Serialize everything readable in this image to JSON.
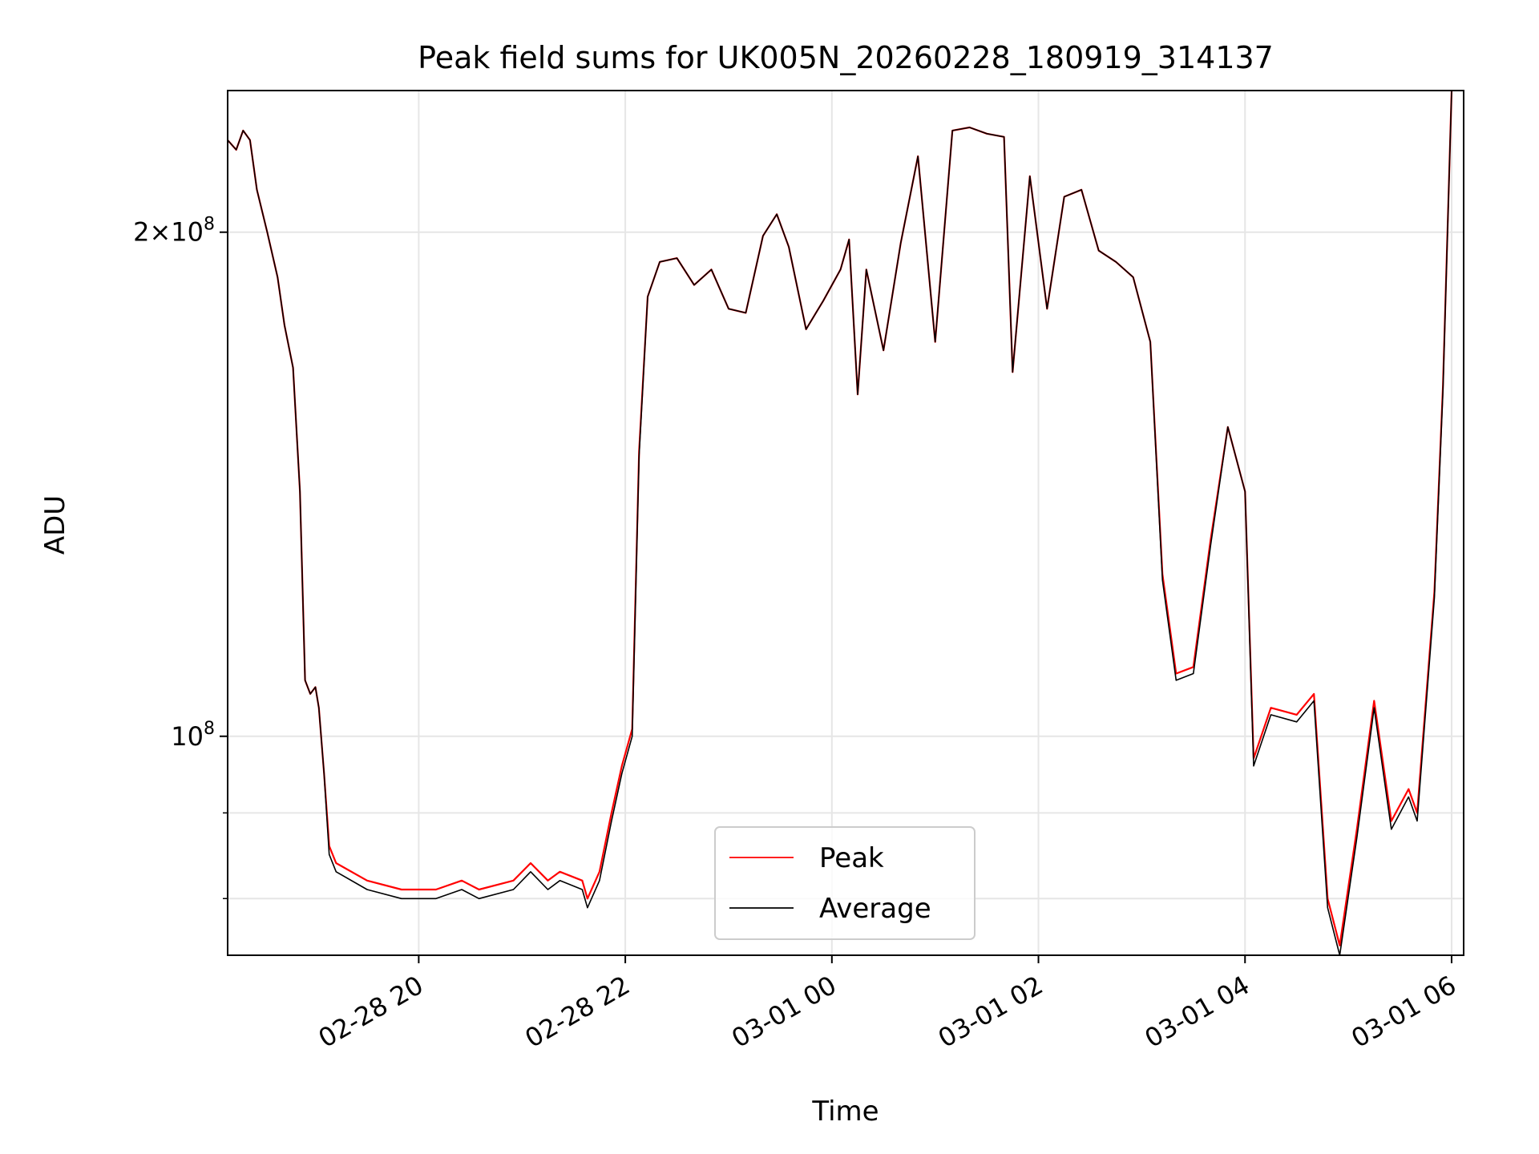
{
  "chart_data": {
    "type": "line",
    "title": "Peak field sums for UK005N_20260228_180919_314137",
    "xlabel": "Time",
    "ylabel": "ADU",
    "y_scale": "log",
    "ylim": [
      74000000.0,
      243000000.0
    ],
    "xlim": [
      "2026-02-28 18:09",
      "2026-03-01 06:07"
    ],
    "x_ticks": [
      "2026-02-28 20:00",
      "2026-02-28 22:00",
      "2026-03-01 00:00",
      "2026-03-01 02:00",
      "2026-03-01 04:00",
      "2026-03-01 06:00"
    ],
    "x_tick_labels": [
      "02-28 20",
      "02-28 22",
      "03-01 00",
      "03-01 02",
      "03-01 04",
      "03-01 06"
    ],
    "y_major_ticks": [
      {
        "value": 100000000,
        "mantissa": "",
        "exponent": "8"
      },
      {
        "value": 200000000,
        "mantissa": "2",
        "exponent": "8"
      }
    ],
    "y_minor_ticks": [
      80000000,
      90000000
    ],
    "grid": true,
    "legend_position": "lower center",
    "series": [
      {
        "name": "Peak",
        "color": "#ff0000",
        "points": [
          [
            "2026-02-28 18:09",
            227000000.0
          ],
          [
            "2026-02-28 18:14",
            224000000.0
          ],
          [
            "2026-02-28 18:18",
            230000000.0
          ],
          [
            "2026-02-28 18:22",
            227000000.0
          ],
          [
            "2026-02-28 18:26",
            212000000.0
          ],
          [
            "2026-02-28 18:32",
            200000000.0
          ],
          [
            "2026-02-28 18:38",
            188000000.0
          ],
          [
            "2026-02-28 18:42",
            176000000.0
          ],
          [
            "2026-02-28 18:47",
            166000000.0
          ],
          [
            "2026-02-28 18:51",
            140000000.0
          ],
          [
            "2026-02-28 18:54",
            108000000.0
          ],
          [
            "2026-02-28 18:57",
            106000000.0
          ],
          [
            "2026-02-28 19:00",
            107000000.0
          ],
          [
            "2026-02-28 19:02",
            104000000.0
          ],
          [
            "2026-02-28 19:05",
            95000000.0
          ],
          [
            "2026-02-28 19:08",
            86000000.0
          ],
          [
            "2026-02-28 19:12",
            84000000.0
          ],
          [
            "2026-02-28 19:30",
            82000000.0
          ],
          [
            "2026-02-28 19:50",
            81000000.0
          ],
          [
            "2026-02-28 20:10",
            81000000.0
          ],
          [
            "2026-02-28 20:25",
            82000000.0
          ],
          [
            "2026-02-28 20:35",
            81000000.0
          ],
          [
            "2026-02-28 20:55",
            82000000.0
          ],
          [
            "2026-02-28 21:05",
            84000000.0
          ],
          [
            "2026-02-28 21:15",
            82000000.0
          ],
          [
            "2026-02-28 21:22",
            83000000.0
          ],
          [
            "2026-02-28 21:35",
            82000000.0
          ],
          [
            "2026-02-28 21:38",
            80000000.0
          ],
          [
            "2026-02-28 21:45",
            83000000.0
          ],
          [
            "2026-02-28 21:52",
            90000000.0
          ],
          [
            "2026-02-28 21:58",
            96000000.0
          ],
          [
            "2026-02-28 22:04",
            101000000.0
          ],
          [
            "2026-02-28 22:08",
            148000000.0
          ],
          [
            "2026-02-28 22:13",
            183000000.0
          ],
          [
            "2026-02-28 22:20",
            192000000.0
          ],
          [
            "2026-02-28 22:30",
            193000000.0
          ],
          [
            "2026-02-28 22:40",
            186000000.0
          ],
          [
            "2026-02-28 22:50",
            190000000.0
          ],
          [
            "2026-02-28 23:00",
            180000000.0
          ],
          [
            "2026-02-28 23:10",
            179000000.0
          ],
          [
            "2026-02-28 23:20",
            199000000.0
          ],
          [
            "2026-02-28 23:28",
            205000000.0
          ],
          [
            "2026-02-28 23:35",
            196000000.0
          ],
          [
            "2026-02-28 23:45",
            175000000.0
          ],
          [
            "2026-02-28 23:55",
            182000000.0
          ],
          [
            "2026-03-01 00:05",
            190000000.0
          ],
          [
            "2026-03-01 00:10",
            198000000.0
          ],
          [
            "2026-03-01 00:15",
            160000000.0
          ],
          [
            "2026-03-01 00:20",
            190000000.0
          ],
          [
            "2026-03-01 00:30",
            170000000.0
          ],
          [
            "2026-03-01 00:40",
            197000000.0
          ],
          [
            "2026-03-01 00:50",
            222000000.0
          ],
          [
            "2026-03-01 01:00",
            172000000.0
          ],
          [
            "2026-03-01 01:10",
            230000000.0
          ],
          [
            "2026-03-01 01:20",
            231000000.0
          ],
          [
            "2026-03-01 01:30",
            229000000.0
          ],
          [
            "2026-03-01 01:40",
            228000000.0
          ],
          [
            "2026-03-01 01:45",
            165000000.0
          ],
          [
            "2026-03-01 01:55",
            216000000.0
          ],
          [
            "2026-03-01 02:05",
            180000000.0
          ],
          [
            "2026-03-01 02:15",
            210000000.0
          ],
          [
            "2026-03-01 02:25",
            212000000.0
          ],
          [
            "2026-03-01 02:35",
            195000000.0
          ],
          [
            "2026-03-01 02:45",
            192000000.0
          ],
          [
            "2026-03-01 02:55",
            188000000.0
          ],
          [
            "2026-03-01 03:05",
            172000000.0
          ],
          [
            "2026-03-01 03:12",
            125000000.0
          ],
          [
            "2026-03-01 03:20",
            109000000.0
          ],
          [
            "2026-03-01 03:30",
            110000000.0
          ],
          [
            "2026-03-01 03:40",
            131000000.0
          ],
          [
            "2026-03-01 03:50",
            153000000.0
          ],
          [
            "2026-03-01 04:00",
            140000000.0
          ],
          [
            "2026-03-01 04:05",
            97000000.0
          ],
          [
            "2026-03-01 04:15",
            104000000.0
          ],
          [
            "2026-03-01 04:30",
            103000000.0
          ],
          [
            "2026-03-01 04:40",
            106000000.0
          ],
          [
            "2026-03-01 04:48",
            80000000.0
          ],
          [
            "2026-03-01 04:55",
            75000000.0
          ],
          [
            "2026-03-01 05:05",
            88000000.0
          ],
          [
            "2026-03-01 05:15",
            105000000.0
          ],
          [
            "2026-03-01 05:25",
            89000000.0
          ],
          [
            "2026-03-01 05:35",
            93000000.0
          ],
          [
            "2026-03-01 05:40",
            90000000.0
          ],
          [
            "2026-03-01 05:50",
            122000000.0
          ],
          [
            "2026-03-01 05:55",
            162000000.0
          ],
          [
            "2026-03-01 06:00",
            243000000.0
          ]
        ]
      },
      {
        "name": "Average",
        "color": "#000000",
        "points": [
          [
            "2026-02-28 18:09",
            227000000.0
          ],
          [
            "2026-02-28 18:14",
            224000000.0
          ],
          [
            "2026-02-28 18:18",
            230000000.0
          ],
          [
            "2026-02-28 18:22",
            227000000.0
          ],
          [
            "2026-02-28 18:26",
            212000000.0
          ],
          [
            "2026-02-28 18:32",
            200000000.0
          ],
          [
            "2026-02-28 18:38",
            188000000.0
          ],
          [
            "2026-02-28 18:42",
            176000000.0
          ],
          [
            "2026-02-28 18:47",
            166000000.0
          ],
          [
            "2026-02-28 18:51",
            140000000.0
          ],
          [
            "2026-02-28 18:54",
            108000000.0
          ],
          [
            "2026-02-28 18:57",
            106000000.0
          ],
          [
            "2026-02-28 19:00",
            107000000.0
          ],
          [
            "2026-02-28 19:02",
            104000000.0
          ],
          [
            "2026-02-28 19:05",
            95000000.0
          ],
          [
            "2026-02-28 19:08",
            85000000.0
          ],
          [
            "2026-02-28 19:12",
            83000000.0
          ],
          [
            "2026-02-28 19:30",
            81000000.0
          ],
          [
            "2026-02-28 19:50",
            80000000.0
          ],
          [
            "2026-02-28 20:10",
            80000000.0
          ],
          [
            "2026-02-28 20:25",
            81000000.0
          ],
          [
            "2026-02-28 20:35",
            80000000.0
          ],
          [
            "2026-02-28 20:55",
            81000000.0
          ],
          [
            "2026-02-28 21:05",
            83000000.0
          ],
          [
            "2026-02-28 21:15",
            81000000.0
          ],
          [
            "2026-02-28 21:22",
            82000000.0
          ],
          [
            "2026-02-28 21:35",
            81000000.0
          ],
          [
            "2026-02-28 21:38",
            79000000.0
          ],
          [
            "2026-02-28 21:45",
            82000000.0
          ],
          [
            "2026-02-28 21:52",
            89000000.0
          ],
          [
            "2026-02-28 21:58",
            95000000.0
          ],
          [
            "2026-02-28 22:04",
            100000000.0
          ],
          [
            "2026-02-28 22:08",
            147000000.0
          ],
          [
            "2026-02-28 22:13",
            183000000.0
          ],
          [
            "2026-02-28 22:20",
            192000000.0
          ],
          [
            "2026-02-28 22:30",
            193000000.0
          ],
          [
            "2026-02-28 22:40",
            186000000.0
          ],
          [
            "2026-02-28 22:50",
            190000000.0
          ],
          [
            "2026-02-28 23:00",
            180000000.0
          ],
          [
            "2026-02-28 23:10",
            179000000.0
          ],
          [
            "2026-02-28 23:20",
            199000000.0
          ],
          [
            "2026-02-28 23:28",
            205000000.0
          ],
          [
            "2026-02-28 23:35",
            196000000.0
          ],
          [
            "2026-02-28 23:45",
            175000000.0
          ],
          [
            "2026-02-28 23:55",
            182000000.0
          ],
          [
            "2026-03-01 00:05",
            190000000.0
          ],
          [
            "2026-03-01 00:10",
            198000000.0
          ],
          [
            "2026-03-01 00:15",
            160000000.0
          ],
          [
            "2026-03-01 00:20",
            190000000.0
          ],
          [
            "2026-03-01 00:30",
            170000000.0
          ],
          [
            "2026-03-01 00:40",
            197000000.0
          ],
          [
            "2026-03-01 00:50",
            222000000.0
          ],
          [
            "2026-03-01 01:00",
            172000000.0
          ],
          [
            "2026-03-01 01:10",
            230000000.0
          ],
          [
            "2026-03-01 01:20",
            231000000.0
          ],
          [
            "2026-03-01 01:30",
            229000000.0
          ],
          [
            "2026-03-01 01:40",
            228000000.0
          ],
          [
            "2026-03-01 01:45",
            165000000.0
          ],
          [
            "2026-03-01 01:55",
            216000000.0
          ],
          [
            "2026-03-01 02:05",
            180000000.0
          ],
          [
            "2026-03-01 02:15",
            210000000.0
          ],
          [
            "2026-03-01 02:25",
            212000000.0
          ],
          [
            "2026-03-01 02:35",
            195000000.0
          ],
          [
            "2026-03-01 02:45",
            192000000.0
          ],
          [
            "2026-03-01 02:55",
            188000000.0
          ],
          [
            "2026-03-01 03:05",
            172000000.0
          ],
          [
            "2026-03-01 03:12",
            124000000.0
          ],
          [
            "2026-03-01 03:20",
            108000000.0
          ],
          [
            "2026-03-01 03:30",
            109000000.0
          ],
          [
            "2026-03-01 03:40",
            130000000.0
          ],
          [
            "2026-03-01 03:50",
            153000000.0
          ],
          [
            "2026-03-01 04:00",
            140000000.0
          ],
          [
            "2026-03-01 04:05",
            96000000.0
          ],
          [
            "2026-03-01 04:15",
            103000000.0
          ],
          [
            "2026-03-01 04:30",
            102000000.0
          ],
          [
            "2026-03-01 04:40",
            105000000.0
          ],
          [
            "2026-03-01 04:48",
            79000000.0
          ],
          [
            "2026-03-01 04:55",
            74000000.0
          ],
          [
            "2026-03-01 05:05",
            87000000.0
          ],
          [
            "2026-03-01 05:15",
            104000000.0
          ],
          [
            "2026-03-01 05:25",
            88000000.0
          ],
          [
            "2026-03-01 05:35",
            92000000.0
          ],
          [
            "2026-03-01 05:40",
            89000000.0
          ],
          [
            "2026-03-01 05:50",
            121000000.0
          ],
          [
            "2026-03-01 05:55",
            161000000.0
          ],
          [
            "2026-03-01 06:00",
            243000000.0
          ]
        ]
      }
    ]
  }
}
